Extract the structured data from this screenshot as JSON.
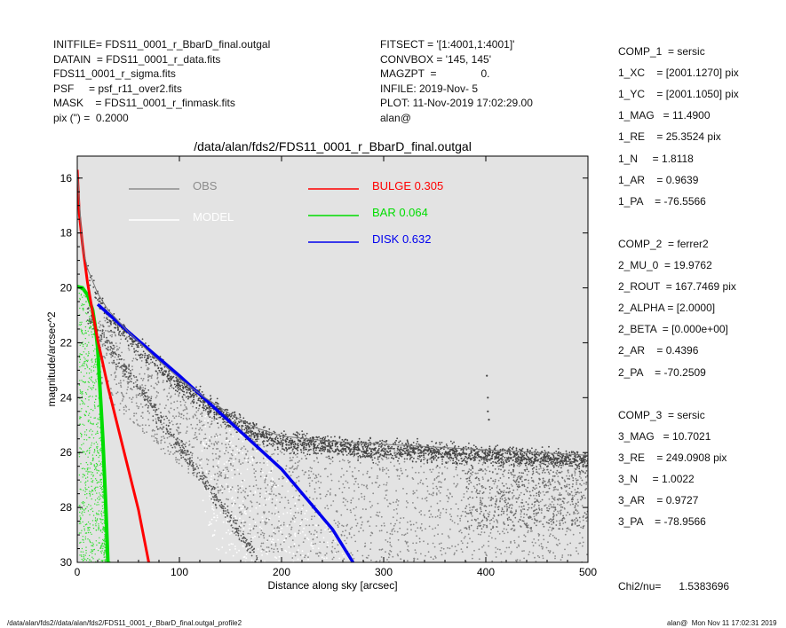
{
  "header_left": [
    "INITFILE= FDS11_0001_r_BbarD_final.outgal",
    "DATAIN  = FDS11_0001_r_data.fits",
    "FDS11_0001_r_sigma.fits",
    "PSF     = psf_r11_over2.fits",
    "MASK    = FDS11_0001_r_finmask.fits",
    "pix (\") =  0.2000"
  ],
  "header_mid": [
    "FITSECT = '[1:4001,1:4001]'",
    "CONVBOX = '145, 145'",
    "MAGZPT  =               0.",
    "INFILE: 2019-Nov- 5",
    "PLOT: 11-Nov-2019 17:02:29.00",
    "alan@"
  ],
  "params_right": [
    "COMP_1  = sersic",
    "1_XC    = [2001.1270] pix",
    "1_YC    = [2001.1050] pix",
    "1_MAG   = 11.4900",
    "1_RE    = 25.3524 pix",
    "1_N     = 1.8118",
    "1_AR    = 0.9639",
    "1_PA    = -76.5566",
    "",
    "COMP_2  = ferrer2",
    "2_MU_0  = 19.9762",
    "2_ROUT  = 167.7469 pix",
    "2_ALPHA = [2.0000]",
    "2_BETA  = [0.000e+00]",
    "2_AR    = 0.4396",
    "2_PA    = -70.2509",
    "",
    "COMP_3  = sersic",
    "3_MAG   = 10.7021",
    "3_RE    = 249.0908 pix",
    "3_N     = 1.0022",
    "3_AR    = 0.9727",
    "3_PA    = -78.9566",
    "",
    "",
    "Chi2/nu=      1.5383696"
  ],
  "footer_left": "/data/alan/fds2//data/alan/fds2/FDS11_0001_r_BbarD_final.outgal_profile2",
  "footer_right": "alan@  Mon Nov 11 17:02:31 2019",
  "chart_data": {
    "type": "scatter",
    "title": "/data/alan/fds2/FDS11_0001_r_BbarD_final.outgal",
    "xlabel": "Distance along sky [arcsec]",
    "ylabel": "magnitude/arcsec^2",
    "xlim": [
      0,
      500
    ],
    "ylim": [
      30,
      15.2
    ],
    "y_inverted": true,
    "x_ticks": [
      0,
      100,
      200,
      300,
      400,
      500
    ],
    "y_ticks": [
      16,
      18,
      20,
      22,
      24,
      26,
      28,
      30
    ],
    "plot_background": "#e3e3e3",
    "grid": false,
    "legend": [
      {
        "label": "OBS",
        "color": "#8c8c8c"
      },
      {
        "label": "MODEL",
        "color": "#ffffff"
      },
      {
        "label": "BULGE",
        "fraction": "0.305",
        "color": "#ff0000"
      },
      {
        "label": "BAR",
        "fraction": "0.064",
        "color": "#00dd00"
      },
      {
        "label": "DISK",
        "fraction": "0.632",
        "color": "#0000ee"
      }
    ],
    "series": [
      {
        "name": "BULGE",
        "color": "#ff0000",
        "x": [
          0,
          2,
          5,
          10,
          15,
          20,
          30,
          40,
          50,
          60,
          70
        ],
        "y": [
          15.7,
          17.3,
          18.4,
          19.8,
          20.9,
          21.9,
          23.6,
          25.1,
          26.6,
          28.1,
          30.0
        ]
      },
      {
        "name": "BAR",
        "color": "#00dd00",
        "x": [
          0,
          5,
          10,
          15,
          18,
          20,
          22,
          25,
          28,
          30
        ],
        "y": [
          19.95,
          20.0,
          20.25,
          20.8,
          21.5,
          22.2,
          23.5,
          25.5,
          28.0,
          30.0
        ]
      },
      {
        "name": "DISK",
        "color": "#0000ee",
        "x": [
          20,
          50,
          100,
          150,
          200,
          250,
          270
        ],
        "y": [
          20.6,
          21.6,
          23.2,
          24.9,
          26.6,
          28.8,
          30.0
        ]
      },
      {
        "name": "OBS",
        "color": "#555555",
        "x": [
          0,
          5,
          10,
          20,
          30,
          50,
          75,
          100,
          125,
          150,
          175,
          200,
          250,
          300,
          350,
          400,
          450,
          500
        ],
        "y": [
          15.7,
          18.5,
          19.3,
          20.2,
          20.8,
          21.6,
          22.5,
          23.3,
          24.0,
          24.6,
          25.1,
          25.4,
          25.6,
          25.7,
          25.8,
          25.9,
          26.0,
          26.1
        ]
      }
    ]
  }
}
